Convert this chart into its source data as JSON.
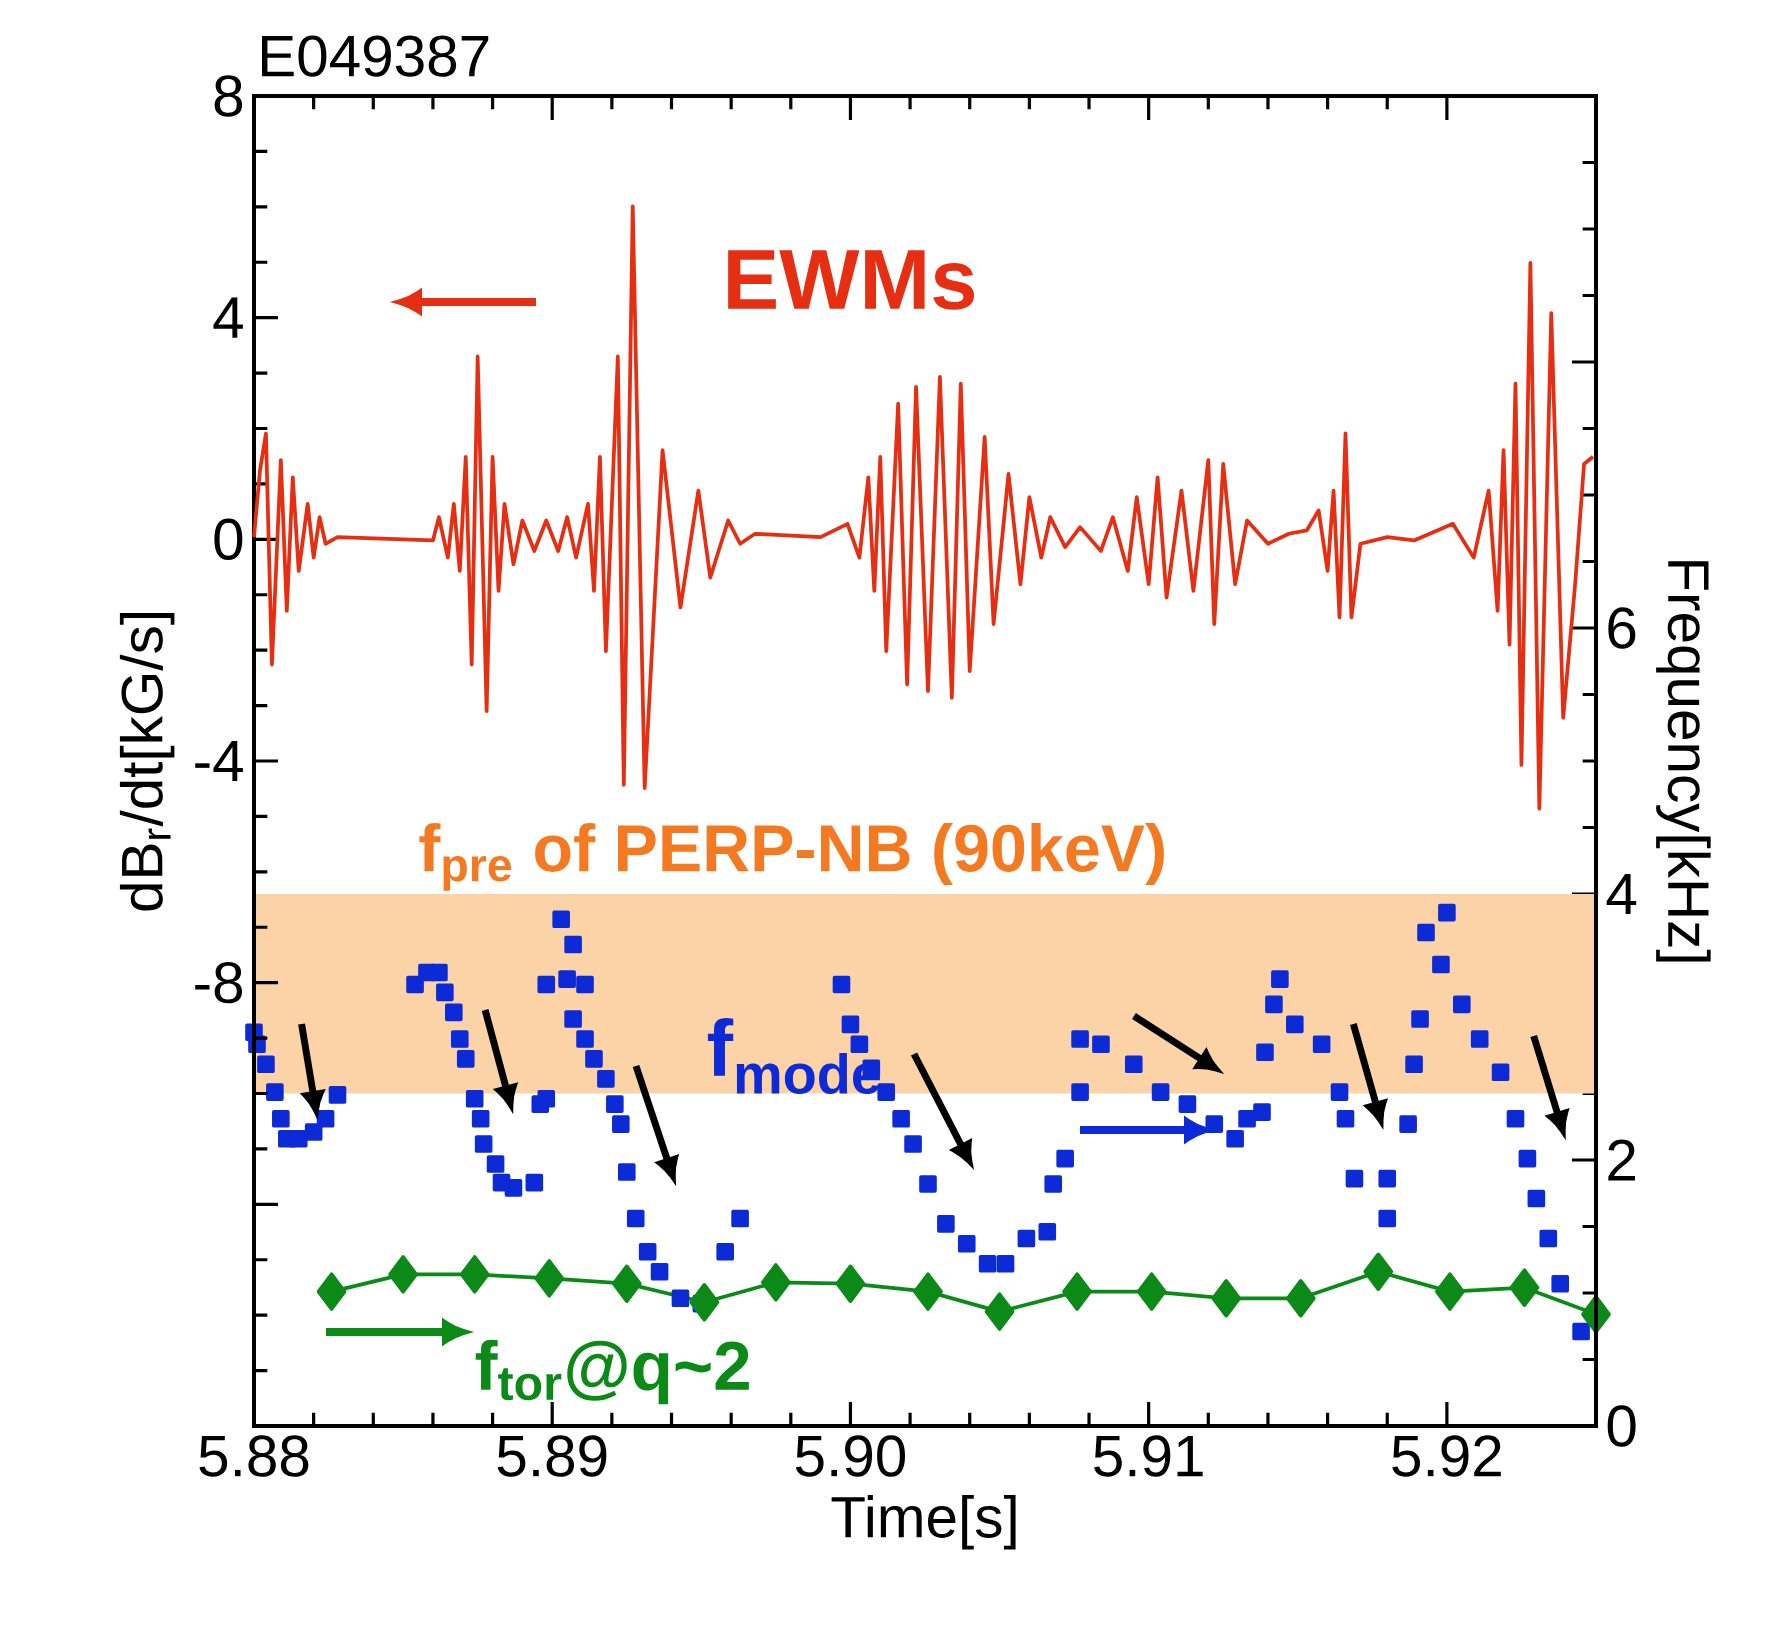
{
  "chart_data": {
    "type": "line",
    "title": "E049387",
    "xlabel": "Time[s]",
    "ylabel": "dB$_{r}$/dt[kG/s]",
    "y2label": "Frequency[kHz]",
    "xlim": [
      5.88,
      5.925
    ],
    "xticks": [
      5.88,
      5.89,
      {
        "value": 5.9,
        "label": "5.90"
      },
      5.91,
      5.92
    ],
    "ylim": [
      -16,
      8
    ],
    "yticks": [
      {
        "value": -16,
        "label": null
      },
      {
        "value": -12,
        "label": null
      },
      -8,
      -4,
      0,
      4,
      8
    ],
    "legend": "left",
    "y2lim": [
      0,
      10
    ],
    "y2ticks": [
      0,
      2,
      4,
      6,
      {
        "value": 8,
        "label": null
      },
      {
        "value": 10,
        "label": null
      }
    ],
    "bands": [
      {
        "axis": "y2",
        "from": 2.5,
        "to": 4.0,
        "label": "f$_{pre}$ of PERP-NB (90keV)",
        "color": "#fbd3a6"
      }
    ],
    "series": [
      {
        "name": "EWMs",
        "color": "#e62e12",
        "axis": "y",
        "marker": "none",
        "x": [
          5.88,
          5.8802,
          5.8804,
          5.8806,
          5.8809,
          5.8811,
          5.8813,
          5.8815,
          5.8818,
          5.882,
          5.8822,
          5.8824,
          5.8828,
          5.886,
          5.8862,
          5.8865,
          5.8867,
          5.8869,
          5.8871,
          5.8873,
          5.8875,
          5.8878,
          5.888,
          5.8882,
          5.8884,
          5.8887,
          5.889,
          5.8894,
          5.8898,
          5.8902,
          5.8905,
          5.8908,
          5.8912,
          5.8914,
          5.8916,
          5.8918,
          5.8922,
          5.8924,
          5.8927,
          5.8931,
          5.8937,
          5.8943,
          5.8949,
          5.8953,
          5.8959,
          5.8963,
          5.8968,
          5.899,
          5.8999,
          5.9003,
          5.9006,
          5.9008,
          5.901,
          5.9012,
          5.9016,
          5.9019,
          5.9022,
          5.9026,
          5.903,
          5.9034,
          5.9037,
          5.904,
          5.9045,
          5.9048,
          5.9053,
          5.9057,
          5.906,
          5.9064,
          5.9067,
          5.9072,
          5.9077,
          5.9084,
          5.9088,
          5.9093,
          5.9096,
          5.91,
          5.9103,
          5.9106,
          5.9111,
          5.9115,
          5.912,
          5.9122,
          5.9125,
          5.9129,
          5.9133,
          5.914,
          5.9147,
          5.9153,
          5.9157,
          5.916,
          5.9162,
          5.9164,
          5.9166,
          5.9168,
          5.9171,
          5.918,
          5.9189,
          5.9202,
          5.9209,
          5.9214,
          5.9217,
          5.9219,
          5.9221,
          5.9223,
          5.9225,
          5.9228,
          5.9231,
          5.9235,
          5.9239,
          5.9243,
          5.9246,
          5.9249
        ],
        "values": [
          0.04,
          1.24,
          1.91,
          -2.26,
          1.43,
          -1.29,
          1.12,
          -0.57,
          0.64,
          -0.33,
          0.4,
          -0.08,
          0.04,
          -0.02,
          0.4,
          -0.33,
          0.64,
          -0.57,
          1.49,
          -2.26,
          3.3,
          -3.1,
          1.49,
          -0.93,
          0.64,
          -0.45,
          0.34,
          -0.21,
          0.34,
          -0.21,
          0.4,
          -0.33,
          0.64,
          -0.93,
          1.49,
          -2.02,
          3.3,
          -4.43,
          6.01,
          -4.49,
          1.61,
          -1.23,
          0.88,
          -0.69,
          0.34,
          -0.08,
          0.1,
          0.04,
          0.28,
          -0.33,
          1.12,
          -0.93,
          1.49,
          -2.02,
          2.45,
          -2.62,
          2.75,
          -2.74,
          2.93,
          -2.86,
          2.81,
          -2.38,
          1.85,
          -1.53,
          1.18,
          -0.81,
          0.76,
          -0.33,
          0.4,
          -0.14,
          0.22,
          -0.21,
          0.4,
          -0.57,
          0.76,
          -0.81,
          1.12,
          -1.05,
          0.88,
          -0.93,
          1.43,
          -1.53,
          1.36,
          -0.81,
          0.34,
          -0.08,
          0.1,
          0.16,
          0.52,
          -0.57,
          0.88,
          -1.41,
          1.91,
          -1.41,
          -0.08,
          0.04,
          -0.02,
          0.28,
          -0.33,
          0.88,
          -1.29,
          1.61,
          -1.9,
          2.81,
          -4.07,
          4.99,
          -4.86,
          4.08,
          -3.22,
          -0.81,
          1.36,
          1.49
        ]
      },
      {
        "name": "f$_{mode}$",
        "color": "#0c2ad6",
        "type": "scatter",
        "axis": "y2",
        "marker": "square",
        "x": [
          5.88,
          5.8801,
          5.8804,
          5.8807,
          5.8809,
          5.8811,
          5.8815,
          5.882,
          5.8824,
          5.8828,
          5.8854,
          5.8858,
          5.8862,
          5.8864,
          5.8867,
          5.8869,
          5.8871,
          5.8874,
          5.8876,
          5.8877,
          5.8881,
          5.8883,
          5.8887,
          5.8894,
          5.8896,
          5.8898,
          5.8898,
          5.8903,
          5.8907,
          5.8905,
          5.8911,
          5.8907,
          5.8911,
          5.8914,
          5.8918,
          5.8921,
          5.8923,
          5.8925,
          5.8928,
          5.8932,
          5.8936,
          5.8943,
          5.895,
          5.8958,
          5.8963,
          5.8997,
          5.9,
          5.9003,
          5.9007,
          5.9012,
          5.9017,
          5.9021,
          5.9026,
          5.9032,
          5.9039,
          5.9046,
          5.9052,
          5.9059,
          5.9066,
          5.9068,
          5.9072,
          5.9077,
          5.9077,
          5.9084,
          5.9095,
          5.9104,
          5.9113,
          5.9122,
          5.9129,
          5.9133,
          5.9138,
          5.9139,
          5.9142,
          5.9144,
          5.9149,
          5.9158,
          5.9164,
          5.9166,
          5.9169,
          5.918,
          5.918,
          5.9187,
          5.9189,
          5.9191,
          5.9193,
          5.92,
          5.9198,
          5.9205,
          5.9211,
          5.9218,
          5.9223,
          5.9227,
          5.923,
          5.9234,
          5.9238,
          5.9245
        ],
        "values": [
          2.96,
          2.87,
          2.72,
          2.51,
          2.31,
          2.16,
          2.16,
          2.21,
          2.31,
          2.49,
          3.32,
          3.41,
          3.41,
          3.26,
          3.11,
          2.91,
          2.76,
          2.46,
          2.31,
          2.12,
          1.97,
          1.83,
          1.79,
          1.83,
          2.42,
          2.46,
          3.32,
          3.81,
          3.62,
          3.36,
          3.32,
          3.06,
          2.91,
          2.76,
          2.61,
          2.42,
          2.27,
          1.91,
          1.56,
          1.31,
          1.16,
          0.96,
          0.92,
          1.31,
          1.56,
          3.32,
          3.02,
          2.87,
          2.69,
          2.51,
          2.31,
          2.12,
          1.82,
          1.52,
          1.37,
          1.22,
          1.22,
          1.41,
          1.46,
          1.82,
          2.01,
          2.51,
          2.91,
          2.87,
          2.72,
          2.51,
          2.42,
          2.27,
          2.16,
          2.31,
          2.36,
          2.81,
          3.17,
          3.36,
          3.02,
          2.87,
          2.51,
          2.31,
          1.86,
          1.86,
          1.56,
          2.27,
          2.72,
          3.06,
          3.71,
          3.86,
          3.47,
          3.17,
          2.91,
          2.66,
          2.31,
          2.01,
          1.71,
          1.41,
          1.07,
          0.71
        ]
      },
      {
        "name": "f$_{tor}$@q~2",
        "color": "#0b8a17",
        "type": "line",
        "axis": "y2",
        "marker": "diamond",
        "x": [
          5.8826,
          5.885,
          5.8874,
          5.8899,
          5.8925,
          5.8951,
          5.8975,
          5.9,
          5.9026,
          5.905,
          5.9076,
          5.9101,
          5.9126,
          5.9151,
          5.9177,
          5.9201,
          5.9226,
          5.925
        ],
        "values": [
          1.01,
          1.14,
          1.14,
          1.11,
          1.07,
          0.93,
          1.08,
          1.07,
          1.01,
          0.86,
          1.01,
          1.01,
          0.96,
          0.96,
          1.16,
          1.01,
          1.04,
          0.84
        ]
      }
    ]
  }
}
